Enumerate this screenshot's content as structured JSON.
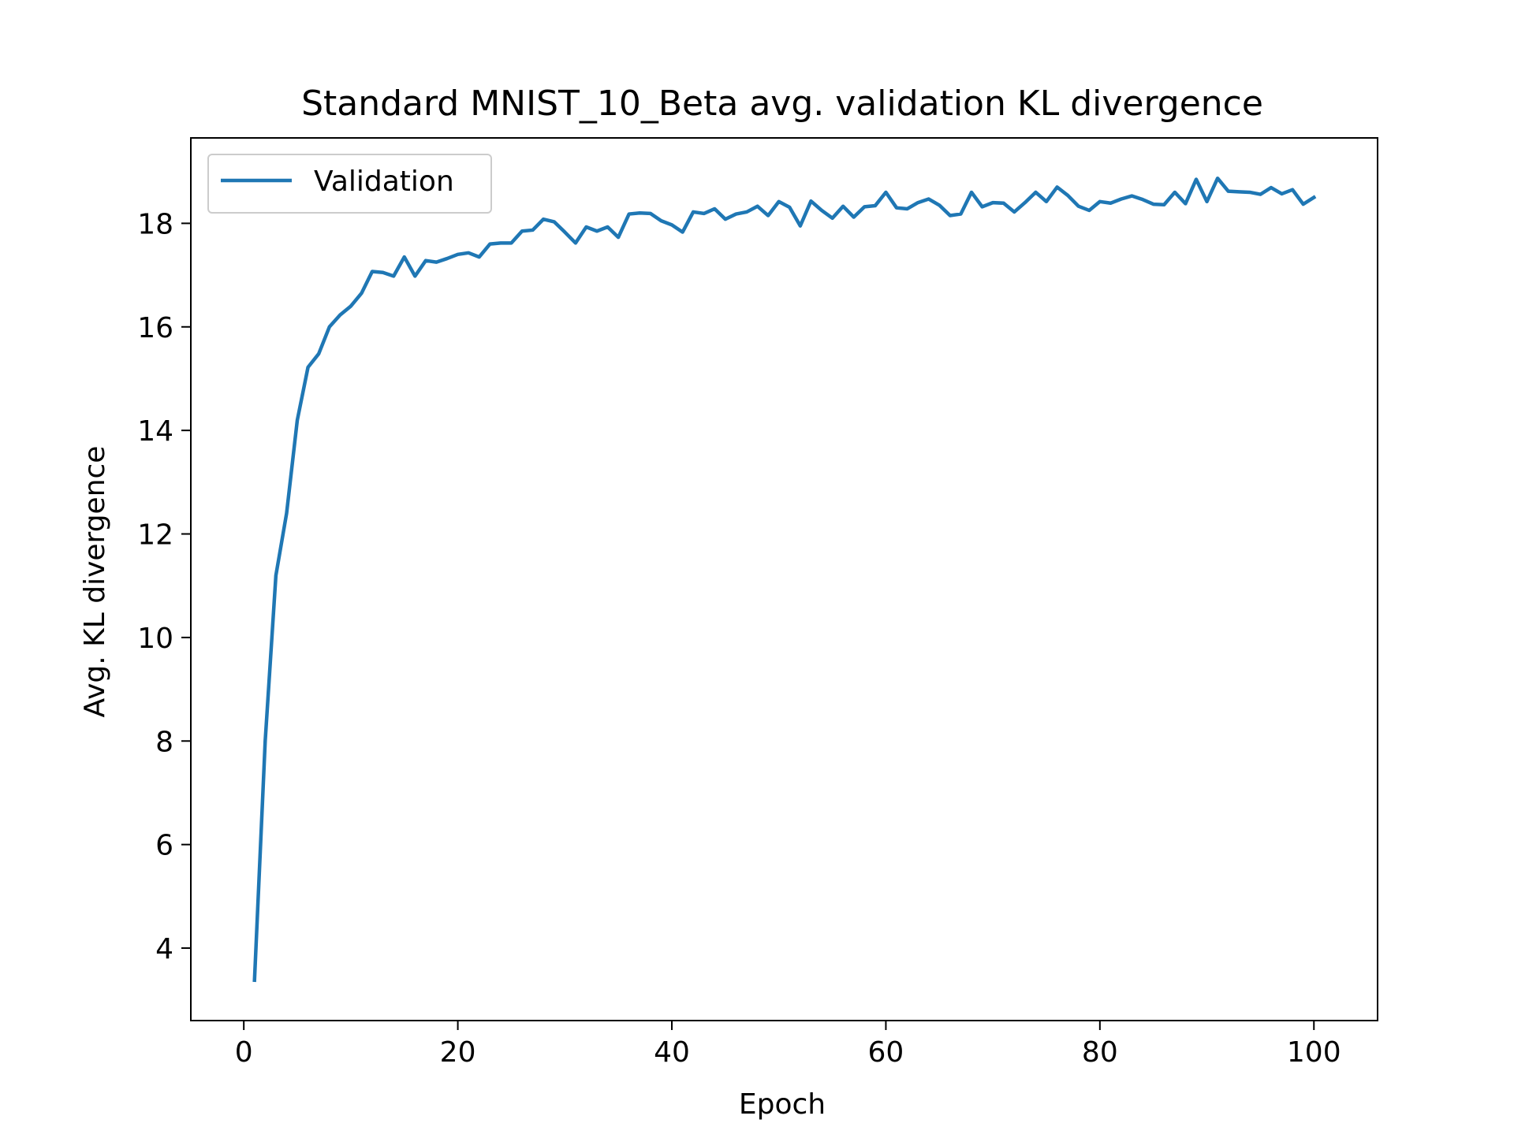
{
  "chart_data": {
    "type": "line",
    "title": "Standard MNIST_10_Beta avg. validation KL divergence",
    "xlabel": "Epoch",
    "ylabel": "Avg. KL divergence",
    "xlim": [
      -4.95,
      105.95
    ],
    "ylim": [
      2.6,
      19.65
    ],
    "xticks": [
      0,
      20,
      40,
      60,
      80,
      100
    ],
    "yticks": [
      4,
      6,
      8,
      10,
      12,
      14,
      16,
      18
    ],
    "xtick_labels": [
      "0",
      "20",
      "40",
      "60",
      "80",
      "100"
    ],
    "ytick_labels": [
      "4",
      "6",
      "8",
      "10",
      "12",
      "14",
      "16",
      "18"
    ],
    "grid": false,
    "legend_position": "upper-left",
    "colors": {
      "series": "#1f77b4",
      "axes": "#000000",
      "legend_border": "#cccccc"
    },
    "series": [
      {
        "name": "Validation",
        "x": [
          1,
          2,
          3,
          4,
          5,
          6,
          7,
          8,
          9,
          10,
          11,
          12,
          13,
          14,
          15,
          16,
          17,
          18,
          19,
          20,
          21,
          22,
          23,
          24,
          25,
          26,
          27,
          28,
          29,
          30,
          31,
          32,
          33,
          34,
          35,
          36,
          37,
          38,
          39,
          40,
          41,
          42,
          43,
          44,
          45,
          46,
          47,
          48,
          49,
          50,
          51,
          52,
          53,
          54,
          55,
          56,
          57,
          58,
          59,
          60,
          61,
          62,
          63,
          64,
          65,
          66,
          67,
          68,
          69,
          70,
          71,
          72,
          73,
          74,
          75,
          76,
          77,
          78,
          79,
          80,
          81,
          82,
          83,
          84,
          85,
          86,
          87,
          88,
          89,
          90,
          91,
          92,
          93,
          94,
          95,
          96,
          97,
          98,
          99,
          100
        ],
        "values": [
          3.38,
          8.0,
          11.2,
          12.4,
          14.2,
          15.22,
          15.48,
          16.0,
          16.23,
          16.4,
          16.65,
          17.07,
          17.05,
          16.98,
          17.35,
          16.98,
          17.28,
          17.25,
          17.32,
          17.4,
          17.43,
          17.35,
          17.6,
          17.62,
          17.62,
          17.85,
          17.87,
          18.08,
          18.03,
          17.83,
          17.62,
          17.93,
          17.85,
          17.93,
          17.73,
          18.18,
          18.2,
          18.19,
          18.05,
          17.97,
          17.83,
          18.22,
          18.19,
          18.28,
          18.08,
          18.18,
          18.22,
          18.33,
          18.15,
          18.42,
          18.31,
          17.95,
          18.43,
          18.25,
          18.1,
          18.33,
          18.12,
          18.32,
          18.34,
          18.6,
          18.3,
          18.28,
          18.4,
          18.47,
          18.35,
          18.15,
          18.18,
          18.6,
          18.32,
          18.4,
          18.39,
          18.22,
          18.4,
          18.6,
          18.42,
          18.7,
          18.54,
          18.33,
          18.25,
          18.42,
          18.39,
          18.47,
          18.53,
          18.46,
          18.37,
          18.36,
          18.6,
          18.38,
          18.85,
          18.42,
          18.87,
          18.62,
          18.61,
          18.6,
          18.56,
          18.69,
          18.57,
          18.65,
          18.37,
          18.5
        ]
      }
    ]
  }
}
